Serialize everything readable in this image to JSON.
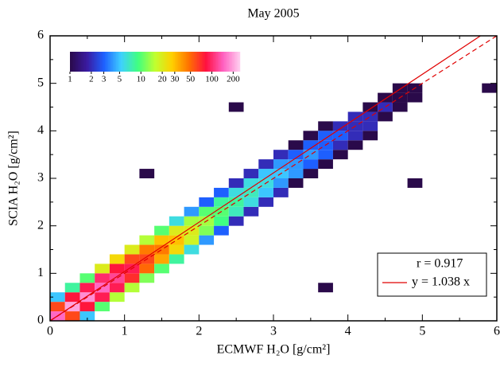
{
  "chart_data": {
    "type": "heatmap",
    "title": "May 2005",
    "x_label": "ECMWF H₂O [g/cm²]",
    "y_label": "SCIA H₂O [g/cm²]",
    "xlim": [
      0,
      6
    ],
    "ylim": [
      0,
      6
    ],
    "xticks": [
      0,
      1,
      2,
      3,
      4,
      5,
      6
    ],
    "yticks": [
      0,
      1,
      2,
      3,
      4,
      5,
      6
    ],
    "cell_size": 0.2,
    "points": [
      {
        "x": 0.1,
        "y": 0.1,
        "count": 150
      },
      {
        "x": 0.1,
        "y": 0.3,
        "count": 60
      },
      {
        "x": 0.1,
        "y": 0.5,
        "count": 5
      },
      {
        "x": 0.3,
        "y": 0.1,
        "count": 60
      },
      {
        "x": 0.3,
        "y": 0.3,
        "count": 200
      },
      {
        "x": 0.3,
        "y": 0.5,
        "count": 80
      },
      {
        "x": 0.3,
        "y": 0.7,
        "count": 8
      },
      {
        "x": 0.5,
        "y": 0.1,
        "count": 5
      },
      {
        "x": 0.5,
        "y": 0.3,
        "count": 80
      },
      {
        "x": 0.5,
        "y": 0.5,
        "count": 180
      },
      {
        "x": 0.5,
        "y": 0.7,
        "count": 90
      },
      {
        "x": 0.5,
        "y": 0.9,
        "count": 10
      },
      {
        "x": 0.7,
        "y": 0.3,
        "count": 10
      },
      {
        "x": 0.7,
        "y": 0.5,
        "count": 90
      },
      {
        "x": 0.7,
        "y": 0.7,
        "count": 150
      },
      {
        "x": 0.7,
        "y": 0.9,
        "count": 100
      },
      {
        "x": 0.7,
        "y": 1.1,
        "count": 20
      },
      {
        "x": 0.9,
        "y": 0.5,
        "count": 15
      },
      {
        "x": 0.9,
        "y": 0.7,
        "count": 90
      },
      {
        "x": 0.9,
        "y": 0.9,
        "count": 120
      },
      {
        "x": 0.9,
        "y": 1.1,
        "count": 80
      },
      {
        "x": 0.9,
        "y": 1.3,
        "count": 25
      },
      {
        "x": 1.1,
        "y": 0.7,
        "count": 15
      },
      {
        "x": 1.1,
        "y": 0.9,
        "count": 70
      },
      {
        "x": 1.1,
        "y": 1.1,
        "count": 90
      },
      {
        "x": 1.1,
        "y": 1.3,
        "count": 60
      },
      {
        "x": 1.1,
        "y": 1.5,
        "count": 20
      },
      {
        "x": 1.3,
        "y": 0.9,
        "count": 12
      },
      {
        "x": 1.3,
        "y": 1.1,
        "count": 50
      },
      {
        "x": 1.3,
        "y": 1.3,
        "count": 60
      },
      {
        "x": 1.3,
        "y": 1.5,
        "count": 45
      },
      {
        "x": 1.3,
        "y": 1.7,
        "count": 15
      },
      {
        "x": 1.5,
        "y": 1.1,
        "count": 10
      },
      {
        "x": 1.5,
        "y": 1.3,
        "count": 35
      },
      {
        "x": 1.5,
        "y": 1.5,
        "count": 45
      },
      {
        "x": 1.5,
        "y": 1.7,
        "count": 30
      },
      {
        "x": 1.5,
        "y": 1.9,
        "count": 10
      },
      {
        "x": 1.7,
        "y": 1.3,
        "count": 8
      },
      {
        "x": 1.7,
        "y": 1.5,
        "count": 25
      },
      {
        "x": 1.7,
        "y": 1.7,
        "count": 30
      },
      {
        "x": 1.7,
        "y": 1.9,
        "count": 20
      },
      {
        "x": 1.7,
        "y": 2.1,
        "count": 6
      },
      {
        "x": 1.9,
        "y": 1.5,
        "count": 6
      },
      {
        "x": 1.9,
        "y": 1.7,
        "count": 18
      },
      {
        "x": 1.9,
        "y": 1.9,
        "count": 20
      },
      {
        "x": 1.9,
        "y": 2.1,
        "count": 14
      },
      {
        "x": 1.9,
        "y": 2.3,
        "count": 4
      },
      {
        "x": 2.1,
        "y": 1.7,
        "count": 4
      },
      {
        "x": 2.1,
        "y": 1.9,
        "count": 12
      },
      {
        "x": 2.1,
        "y": 2.1,
        "count": 14
      },
      {
        "x": 2.1,
        "y": 2.3,
        "count": 10
      },
      {
        "x": 2.1,
        "y": 2.5,
        "count": 3
      },
      {
        "x": 2.3,
        "y": 1.9,
        "count": 3
      },
      {
        "x": 2.3,
        "y": 2.1,
        "count": 9
      },
      {
        "x": 2.3,
        "y": 2.3,
        "count": 10
      },
      {
        "x": 2.3,
        "y": 2.5,
        "count": 8
      },
      {
        "x": 2.3,
        "y": 2.7,
        "count": 3
      },
      {
        "x": 2.5,
        "y": 2.1,
        "count": 2
      },
      {
        "x": 2.5,
        "y": 2.3,
        "count": 7
      },
      {
        "x": 2.5,
        "y": 2.5,
        "count": 8
      },
      {
        "x": 2.5,
        "y": 2.7,
        "count": 6
      },
      {
        "x": 2.5,
        "y": 2.9,
        "count": 2
      },
      {
        "x": 2.7,
        "y": 2.3,
        "count": 2
      },
      {
        "x": 2.7,
        "y": 2.5,
        "count": 6
      },
      {
        "x": 2.7,
        "y": 2.7,
        "count": 7
      },
      {
        "x": 2.7,
        "y": 2.9,
        "count": 6
      },
      {
        "x": 2.7,
        "y": 3.1,
        "count": 2
      },
      {
        "x": 2.9,
        "y": 2.5,
        "count": 2
      },
      {
        "x": 2.9,
        "y": 2.7,
        "count": 5
      },
      {
        "x": 2.9,
        "y": 2.9,
        "count": 6
      },
      {
        "x": 2.9,
        "y": 3.1,
        "count": 5
      },
      {
        "x": 2.9,
        "y": 3.3,
        "count": 2
      },
      {
        "x": 3.1,
        "y": 2.7,
        "count": 2
      },
      {
        "x": 3.1,
        "y": 2.9,
        "count": 4
      },
      {
        "x": 3.1,
        "y": 3.1,
        "count": 5
      },
      {
        "x": 3.1,
        "y": 3.3,
        "count": 4
      },
      {
        "x": 3.1,
        "y": 3.5,
        "count": 2
      },
      {
        "x": 3.3,
        "y": 2.9,
        "count": 1
      },
      {
        "x": 3.3,
        "y": 3.1,
        "count": 4
      },
      {
        "x": 3.3,
        "y": 3.3,
        "count": 4
      },
      {
        "x": 3.3,
        "y": 3.5,
        "count": 3
      },
      {
        "x": 3.3,
        "y": 3.7,
        "count": 1
      },
      {
        "x": 3.5,
        "y": 3.1,
        "count": 1
      },
      {
        "x": 3.5,
        "y": 3.3,
        "count": 3
      },
      {
        "x": 3.5,
        "y": 3.5,
        "count": 4
      },
      {
        "x": 3.5,
        "y": 3.7,
        "count": 3
      },
      {
        "x": 3.5,
        "y": 3.9,
        "count": 1
      },
      {
        "x": 3.7,
        "y": 3.3,
        "count": 1
      },
      {
        "x": 3.7,
        "y": 3.5,
        "count": 3
      },
      {
        "x": 3.7,
        "y": 3.7,
        "count": 3
      },
      {
        "x": 3.7,
        "y": 3.9,
        "count": 3
      },
      {
        "x": 3.7,
        "y": 4.1,
        "count": 1
      },
      {
        "x": 3.9,
        "y": 3.5,
        "count": 1
      },
      {
        "x": 3.9,
        "y": 3.7,
        "count": 2
      },
      {
        "x": 3.9,
        "y": 3.9,
        "count": 3
      },
      {
        "x": 3.9,
        "y": 4.1,
        "count": 2
      },
      {
        "x": 4.1,
        "y": 3.7,
        "count": 1
      },
      {
        "x": 4.1,
        "y": 3.9,
        "count": 2
      },
      {
        "x": 4.1,
        "y": 4.1,
        "count": 2
      },
      {
        "x": 4.1,
        "y": 4.3,
        "count": 2
      },
      {
        "x": 4.3,
        "y": 3.9,
        "count": 1
      },
      {
        "x": 4.3,
        "y": 4.1,
        "count": 2
      },
      {
        "x": 4.3,
        "y": 4.3,
        "count": 2
      },
      {
        "x": 4.3,
        "y": 4.5,
        "count": 1
      },
      {
        "x": 4.5,
        "y": 4.3,
        "count": 1
      },
      {
        "x": 4.5,
        "y": 4.5,
        "count": 2
      },
      {
        "x": 4.5,
        "y": 4.7,
        "count": 1
      },
      {
        "x": 4.7,
        "y": 4.5,
        "count": 1
      },
      {
        "x": 4.7,
        "y": 4.7,
        "count": 1
      },
      {
        "x": 4.7,
        "y": 4.9,
        "count": 1
      },
      {
        "x": 4.9,
        "y": 4.7,
        "count": 1
      },
      {
        "x": 4.9,
        "y": 4.9,
        "count": 1
      },
      {
        "x": 2.5,
        "y": 4.5,
        "count": 1
      },
      {
        "x": 5.9,
        "y": 4.9,
        "count": 1
      },
      {
        "x": 4.9,
        "y": 2.9,
        "count": 1
      },
      {
        "x": 3.7,
        "y": 0.7,
        "count": 1
      },
      {
        "x": 1.3,
        "y": 3.1,
        "count": 1
      }
    ],
    "colorbar": {
      "scale": "log",
      "lim": [
        1,
        250
      ],
      "ticks": [
        1,
        2,
        3,
        5,
        10,
        20,
        30,
        50,
        100,
        200
      ],
      "colors": [
        "#2a0a4a",
        "#3a1aa0",
        "#1e60ff",
        "#3fd0ff",
        "#40ff80",
        "#c0ff30",
        "#ffd000",
        "#ff7000",
        "#ff1040",
        "#ff60c0",
        "#ffd0f0"
      ]
    },
    "stat_label": "r = 0.917",
    "lines": [
      {
        "name": "y = 1.038 x",
        "slope": 1.038,
        "color": "#e00000",
        "dash": false
      },
      {
        "slope": 1,
        "color": "#e00000",
        "dash": true
      }
    ]
  }
}
